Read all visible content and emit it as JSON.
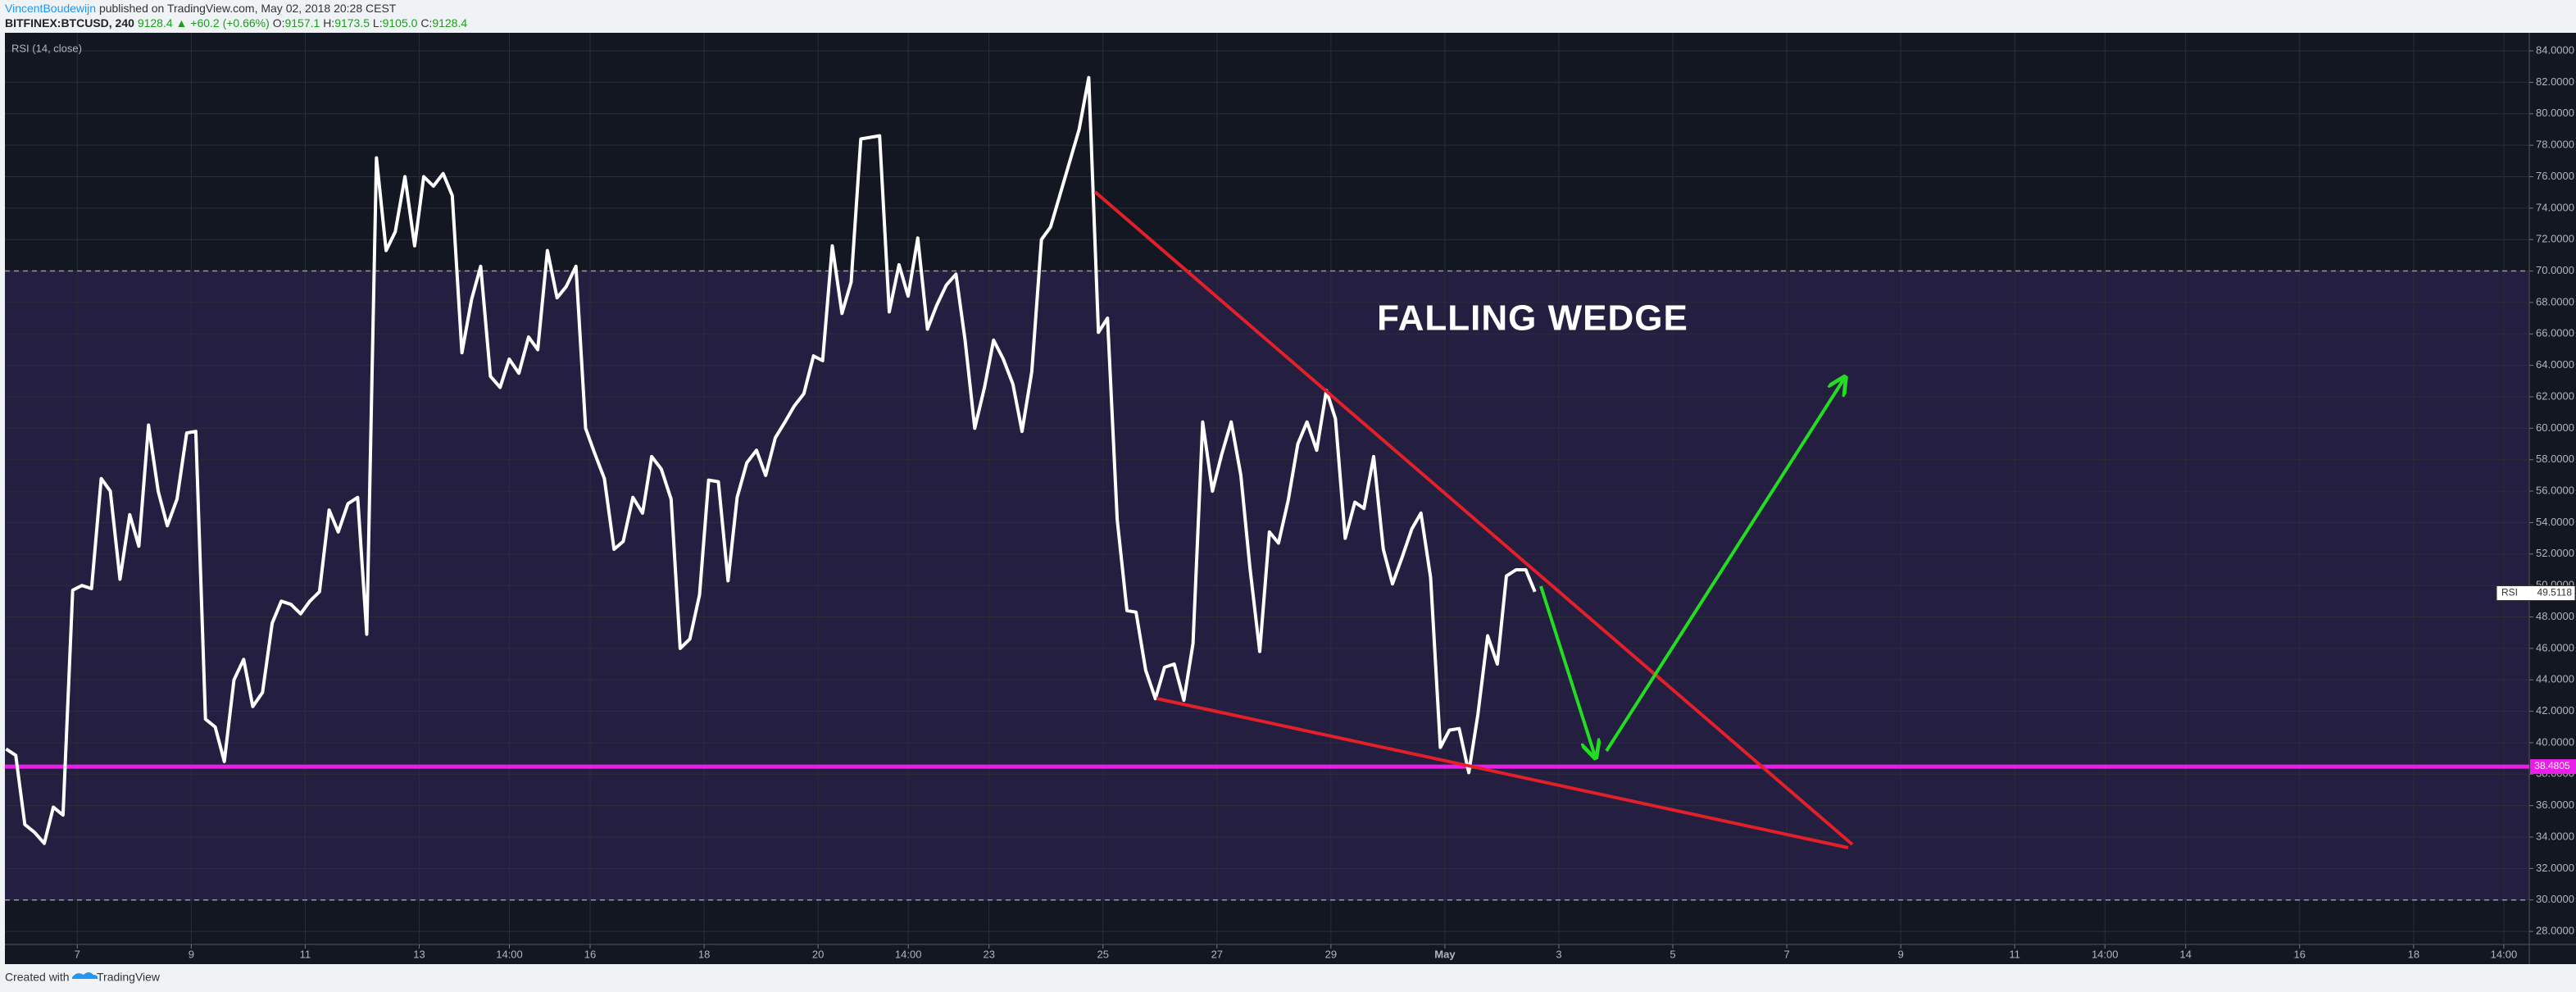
{
  "header": {
    "author": "VincentBoudewijn",
    "published": "published on TradingView.com, May 02, 2018 20:28 CEST",
    "symbol": "BITFINEX:BTCUSD, 240",
    "price": "9128.4",
    "change": "▲ +60.2 (+0.66%)",
    "ohlc": [
      {
        "label": "O:",
        "value": "9157.1"
      },
      {
        "label": "H:",
        "value": "9173.5"
      },
      {
        "label": "L:",
        "value": "9105.0"
      },
      {
        "label": "C:",
        "value": "9128.4"
      }
    ]
  },
  "chart_data": {
    "type": "line",
    "title": "RSI (14, close)",
    "annotation": "FALLING WEDGE",
    "x": [
      5.75,
      5.92,
      6.08,
      6.25,
      6.42,
      6.58,
      6.75,
      6.92,
      7.08,
      7.25,
      7.42,
      7.58,
      7.75,
      7.92,
      8.08,
      8.25,
      8.42,
      8.58,
      8.75,
      8.92,
      9.08,
      9.25,
      9.42,
      9.58,
      9.75,
      9.92,
      10.08,
      10.25,
      10.42,
      10.58,
      10.75,
      10.92,
      11.08,
      11.25,
      11.42,
      11.58,
      11.75,
      11.92,
      12.08,
      12.25,
      12.42,
      12.58,
      12.75,
      12.92,
      13.08,
      13.25,
      13.42,
      13.58,
      13.75,
      13.92,
      14.08,
      14.25,
      14.42,
      14.58,
      14.75,
      14.92,
      15.08,
      15.25,
      15.42,
      15.58,
      15.75,
      15.92,
      16.08,
      16.25,
      16.42,
      16.58,
      16.75,
      16.92,
      17.08,
      17.25,
      17.42,
      17.58,
      17.75,
      17.92,
      18.08,
      18.25,
      18.42,
      18.58,
      18.75,
      18.92,
      19.08,
      19.25,
      19.42,
      19.58,
      19.75,
      19.92,
      20.08,
      20.25,
      20.42,
      20.58,
      20.75,
      20.92,
      21.08,
      21.25,
      21.42,
      21.58,
      21.75,
      21.92,
      22.08,
      22.25,
      22.42,
      22.58,
      22.75,
      22.92,
      23.08,
      23.25,
      23.42,
      23.58,
      23.75,
      23.92,
      24.08,
      24.25,
      24.42,
      24.58,
      24.75,
      24.92,
      25.08,
      25.25,
      25.42,
      25.58,
      25.75,
      25.92,
      26.08,
      26.25,
      26.42,
      26.58,
      26.75,
      26.92,
      27.08,
      27.25,
      27.42,
      27.58,
      27.75,
      27.92,
      28.08,
      28.25,
      28.42,
      28.58,
      28.75,
      28.92,
      29.08,
      29.25,
      29.42,
      29.58,
      29.75,
      29.92,
      30.08,
      30.25,
      30.42,
      30.58,
      30.75,
      30.92,
      31.08,
      31.25,
      31.42,
      31.58,
      31.75,
      31.92,
      32.08,
      32.25,
      32.42,
      32.58
    ],
    "series": [
      {
        "name": "RSI",
        "color": "#ffffff",
        "values": [
          39.6,
          39.2,
          34.8,
          34.3,
          33.6,
          35.9,
          35.4,
          49.7,
          50.0,
          49.8,
          56.8,
          56.0,
          50.4,
          54.5,
          52.5,
          60.2,
          56.0,
          53.8,
          55.5,
          59.7,
          59.8,
          41.5,
          41.0,
          38.8,
          44.0,
          45.3,
          42.3,
          43.2,
          47.6,
          49.0,
          48.8,
          48.2,
          49.0,
          49.6,
          54.8,
          53.4,
          55.2,
          55.6,
          46.9,
          77.2,
          71.3,
          72.5,
          76.0,
          71.6,
          76.0,
          75.4,
          76.2,
          74.8,
          64.8,
          68.2,
          70.3,
          63.3,
          62.6,
          64.4,
          63.5,
          65.8,
          65.0,
          71.3,
          68.3,
          69.0,
          70.3,
          60.0,
          58.4,
          56.8,
          52.3,
          52.8,
          55.6,
          54.6,
          58.2,
          57.4,
          55.5,
          46.0,
          46.6,
          49.4,
          56.7,
          56.6,
          50.3,
          55.6,
          57.8,
          58.6,
          57.0,
          59.4,
          60.4,
          61.4,
          62.2,
          64.6,
          64.3,
          71.6,
          67.3,
          69.3,
          78.4,
          78.5,
          78.6,
          67.4,
          70.4,
          68.4,
          72.1,
          66.3,
          67.8,
          69.1,
          69.8,
          65.6,
          60.0,
          62.6,
          65.6,
          64.4,
          62.8,
          59.8,
          63.6,
          72.0,
          72.8,
          74.9,
          77.0,
          79.0,
          82.3,
          66.1,
          67.0,
          54.2,
          48.4,
          48.3,
          44.6,
          42.8,
          44.8,
          45.0,
          42.7,
          46.3,
          60.4,
          56.0,
          58.3,
          60.4,
          57.0,
          51.1,
          45.8,
          53.4,
          52.7,
          55.4,
          59.0,
          60.4,
          58.6,
          62.4,
          60.6,
          53.0,
          55.3,
          54.9,
          58.2,
          52.3,
          50.1,
          51.8,
          53.6,
          54.6,
          50.5,
          39.7,
          40.8,
          40.9,
          38.1,
          41.8,
          46.8,
          45.0,
          50.6,
          51.0,
          51.0,
          49.6
        ]
      }
    ],
    "last_value": 49.5118,
    "level": 38.4805,
    "level_color": "#e91ee9",
    "bands": {
      "upper": 70,
      "lower": 30,
      "color": "#673ab7"
    },
    "xlim": [
      5.73,
      50.03
    ],
    "xticks": [
      7,
      9,
      11,
      13,
      {
        "value": 14.583,
        "label": "14:00"
      },
      16,
      18,
      20,
      {
        "value": 21.583,
        "label": "14:00"
      },
      23,
      25,
      27,
      29,
      {
        "value": 31,
        "label": "May"
      },
      {
        "value": 33,
        "label": "3"
      },
      {
        "value": 35,
        "label": "5"
      },
      {
        "value": 37,
        "label": "7"
      },
      {
        "value": 39,
        "label": "9"
      },
      {
        "value": 41,
        "label": "11"
      },
      {
        "value": 42.583,
        "label": "14:00"
      },
      {
        "value": 44,
        "label": "14"
      },
      {
        "value": 46,
        "label": "16"
      },
      {
        "value": 48,
        "label": "18"
      },
      {
        "value": 49.583,
        "label": "14:00"
      }
    ],
    "ylim": [
      27.17,
      85.15
    ],
    "yticks": [
      {
        "value": 28,
        "label": "28.0000"
      },
      {
        "value": 30,
        "label": "30.0000"
      },
      {
        "value": 32,
        "label": "32.0000"
      },
      {
        "value": 34,
        "label": "34.0000"
      },
      {
        "value": 36,
        "label": "36.0000"
      },
      {
        "value": 38,
        "label": "38.0000"
      },
      {
        "value": 40,
        "label": "40.0000"
      },
      {
        "value": 42,
        "label": "42.0000"
      },
      {
        "value": 44,
        "label": "44.0000"
      },
      {
        "value": 46,
        "label": "46.0000"
      },
      {
        "value": 48,
        "label": "48.0000"
      },
      {
        "value": 50,
        "label": "50.0000"
      },
      {
        "value": 52,
        "label": "52.0000"
      },
      {
        "value": 54,
        "label": "54.0000"
      },
      {
        "value": 56,
        "label": "56.0000"
      },
      {
        "value": 58,
        "label": "58.0000"
      },
      {
        "value": 60,
        "label": "60.0000"
      },
      {
        "value": 62,
        "label": "62.0000"
      },
      {
        "value": 64,
        "label": "64.0000"
      },
      {
        "value": 66,
        "label": "66.0000"
      },
      {
        "value": 68,
        "label": "68.0000"
      },
      {
        "value": 70,
        "label": "70.0000"
      },
      {
        "value": 72,
        "label": "72.0000"
      },
      {
        "value": 74,
        "label": "74.0000"
      },
      {
        "value": 76,
        "label": "76.0000"
      },
      {
        "value": 78,
        "label": "78.0000"
      },
      {
        "value": 80,
        "label": "80.0000"
      },
      {
        "value": 82,
        "label": "82.0000"
      },
      {
        "value": 84,
        "label": "84.0000"
      }
    ],
    "grid": true
  },
  "footer": {
    "created": "Created with",
    "brand": "TradingView"
  }
}
